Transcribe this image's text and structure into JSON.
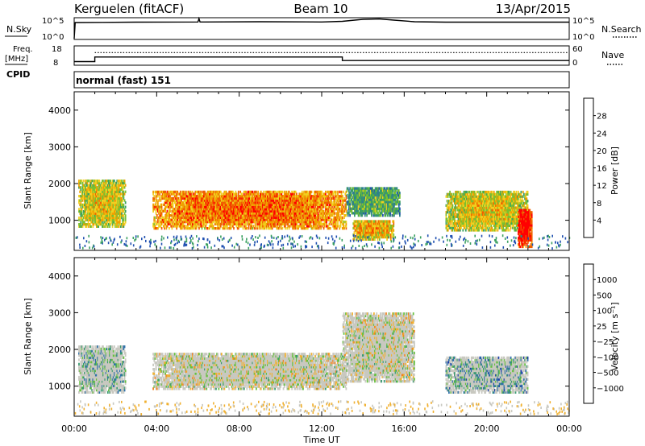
{
  "header": {
    "station": "Kerguelen (fitACF)",
    "beam": "Beam 10",
    "date": "13/Apr/2015"
  },
  "panels": {
    "nsky_label": "N.Sky",
    "nsearch_label": "N.Search",
    "nsky_ticks": [
      "10^5",
      "10^0"
    ],
    "nsearch_ticks": [
      "10^5",
      "10^0"
    ],
    "freq_label_line1": "Freq.",
    "freq_label_line2": "[MHz]",
    "freq_ticks": [
      "18",
      "8"
    ],
    "nave_label": "Nave",
    "nave_ticks": [
      "60",
      "0"
    ],
    "cpid_label": "CPID",
    "cpid_value": "normal (fast) 151"
  },
  "chart_data": [
    {
      "type": "line",
      "name": "N.Sky / N.Search time series",
      "x_units": "hours UT",
      "ylim_log10": [
        0,
        5
      ],
      "nsky_x": [
        0,
        0.05,
        3,
        6,
        6.05,
        6.1,
        9,
        12,
        13,
        14,
        14.8,
        15.5,
        16.5,
        18,
        21,
        24
      ],
      "nsky_log10": [
        0,
        4,
        4.1,
        4.15,
        5,
        4.15,
        4.2,
        4.15,
        4.3,
        4.8,
        4.9,
        4.6,
        4.2,
        4.1,
        4.1,
        4.1
      ]
    },
    {
      "type": "line",
      "name": "Frequency / Nave",
      "x_units": "hours UT",
      "ylim": [
        8,
        18
      ],
      "freq_x": [
        0,
        1,
        1,
        13,
        13,
        24
      ],
      "freq_mhz": [
        9.6,
        9.6,
        12.2,
        12.2,
        10.2,
        10.2
      ],
      "nave_ylim": [
        0,
        60
      ],
      "nave_level": 40
    },
    {
      "type": "heatmap",
      "quantity": "Power",
      "xlabel": "",
      "ylabel": "Slant Range [km]",
      "xlim": [
        0,
        24
      ],
      "ylim": [
        180,
        4500
      ],
      "yticks": [
        "4000",
        "3000",
        "2000",
        "1000"
      ],
      "colorbar_label": "Power [dB]",
      "colorbar_ticks": [
        "28",
        "24",
        "20",
        "16",
        "12",
        "8",
        "4"
      ],
      "colorbar_colors": [
        "#0000ff",
        "#1f4fb0",
        "#2f7f8f",
        "#3aa060",
        "#7ac030",
        "#f0d020",
        "#f0a000",
        "#f06000",
        "#ff0000"
      ],
      "regions": [
        {
          "t0": 0.2,
          "t1": 2.5,
          "r0": 800,
          "r1": 2100,
          "level": 0.55
        },
        {
          "t0": 3.8,
          "t1": 13.2,
          "r0": 750,
          "r1": 1800,
          "level": 0.72
        },
        {
          "t0": 13.2,
          "t1": 15.8,
          "r0": 1100,
          "r1": 1900,
          "level": 0.35
        },
        {
          "t0": 13.5,
          "t1": 15.5,
          "r0": 450,
          "r1": 1000,
          "level": 0.62
        },
        {
          "t0": 18.0,
          "t1": 22.0,
          "r0": 700,
          "r1": 1800,
          "level": 0.55
        },
        {
          "t0": 21.5,
          "t1": 22.2,
          "r0": 250,
          "r1": 1300,
          "level": 0.9
        }
      ]
    },
    {
      "type": "heatmap",
      "quantity": "Velocity",
      "xlabel": "Time UT",
      "ylabel": "Slant Range [km]",
      "xlim": [
        0,
        24
      ],
      "ylim": [
        180,
        4500
      ],
      "xticks": [
        "00:00",
        "04:00",
        "08:00",
        "12:00",
        "16:00",
        "20:00",
        "00:00"
      ],
      "yticks": [
        "4000",
        "3000",
        "2000",
        "1000"
      ],
      "colorbar_label": "Velocity [m s⁻¹]",
      "colorbar_ticks": [
        "1000",
        "500",
        "100",
        "25",
        "−25",
        "−100",
        "−500",
        "−1000"
      ],
      "colorbar_colors": [
        "#1b3fa8",
        "#2f70a8",
        "#3a9a70",
        "#66c040",
        "#c8c8c0",
        "#c8c8c0",
        "#f0b030",
        "#f08020",
        "#f05010",
        "#ff0000"
      ],
      "regions": [
        {
          "t0": 0.2,
          "t1": 2.5,
          "r0": 800,
          "r1": 2100,
          "level": 0.35
        },
        {
          "t0": 3.8,
          "t1": 13.2,
          "r0": 900,
          "r1": 1900,
          "level": 0.5
        },
        {
          "t0": 13.0,
          "t1": 16.5,
          "r0": 1100,
          "r1": 3000,
          "level": 0.5
        },
        {
          "t0": 18.0,
          "t1": 22.0,
          "r0": 800,
          "r1": 1800,
          "level": 0.3
        }
      ]
    }
  ]
}
